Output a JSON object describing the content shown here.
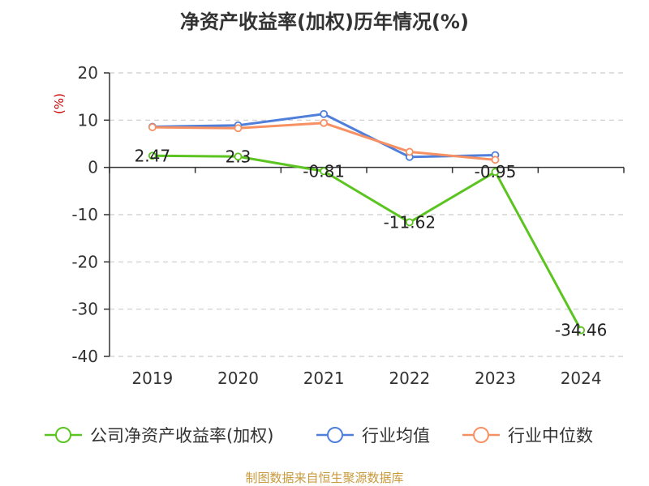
{
  "colors": {
    "company": "#5cc421",
    "industry_avg": "#4f7fdb",
    "industry_median": "#f79163",
    "unit": "#cc0000",
    "source": "#c89a3c",
    "grid": "#cccccc",
    "axis": "#333333"
  },
  "chart_data": {
    "type": "line",
    "title": "净资产收益率(加权)历年情况(%)",
    "ylabel": "(%)",
    "xlabel": "",
    "categories": [
      "2019",
      "2020",
      "2021",
      "2022",
      "2023",
      "2024"
    ],
    "ylim": [
      -40,
      20
    ],
    "yticks": [
      20,
      10,
      0,
      -10,
      -20,
      -30,
      -40
    ],
    "grid": true,
    "legend_position": "bottom",
    "series": [
      {
        "name": "公司净资产收益率(加权)",
        "values": [
          2.47,
          2.3,
          -0.81,
          -11.62,
          -0.95,
          -34.46
        ],
        "labels": [
          "2.47",
          "2.3",
          "-0.81",
          "-11.62",
          "-0.95",
          "-34.46"
        ],
        "color_key": "company"
      },
      {
        "name": "行业均值",
        "values": [
          8.6,
          8.9,
          11.3,
          2.2,
          2.6,
          null
        ],
        "color_key": "industry_avg"
      },
      {
        "name": "行业中位数",
        "values": [
          8.5,
          8.3,
          9.4,
          3.3,
          1.6,
          null
        ],
        "color_key": "industry_median"
      }
    ]
  },
  "source_text": "制图数据来自恒生聚源数据库"
}
